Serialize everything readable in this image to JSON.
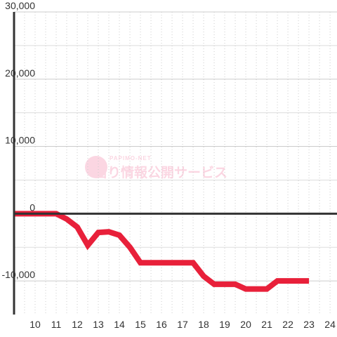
{
  "chart_data": {
    "type": "line",
    "watermark": {
      "brand": "PAPIMO-NET",
      "text": "当り情報公開サービス"
    },
    "x": [
      9,
      9.5,
      10,
      10.5,
      11,
      11.5,
      12,
      12.5,
      13,
      13.5,
      14,
      14.5,
      15,
      15.5,
      16,
      16.5,
      17,
      17.5,
      18,
      18.5,
      19,
      19.5,
      20,
      20.5,
      21,
      21.5,
      22,
      22.5,
      23
    ],
    "series": [
      {
        "name": null,
        "color": "#e8203a",
        "values": [
          0,
          0,
          0,
          0,
          0,
          -800,
          -2000,
          -4700,
          -2800,
          -2700,
          -3200,
          -5000,
          -7300,
          -7300,
          -7300,
          -7300,
          -7300,
          -7300,
          -9300,
          -10500,
          -10500,
          -10500,
          -11200,
          -11200,
          -11200,
          -10000,
          -10000,
          -10000,
          -10000
        ]
      }
    ],
    "xlim": [
      9,
      24.33
    ],
    "xticks": [
      10,
      11,
      12,
      13,
      14,
      15,
      16,
      17,
      18,
      19,
      20,
      21,
      22,
      23,
      24
    ],
    "x_minor_ticks": [
      9.5,
      10.5,
      11.5,
      12.5,
      13.5,
      14.5,
      15.5,
      16.5,
      17.5,
      18.5,
      19.5,
      20.5,
      21.5,
      22.5,
      23.5
    ],
    "ylim": [
      -15000,
      30000
    ],
    "yticks": [
      {
        "value": -10000,
        "label": "-10,000"
      },
      0,
      {
        "value": 10000,
        "label": "10,000"
      },
      {
        "value": 20000,
        "label": "20,000"
      },
      {
        "value": 30000,
        "label": "30,000"
      }
    ],
    "y_minor_ticks": [
      -5000,
      5000,
      15000,
      25000
    ],
    "grid": true
  }
}
